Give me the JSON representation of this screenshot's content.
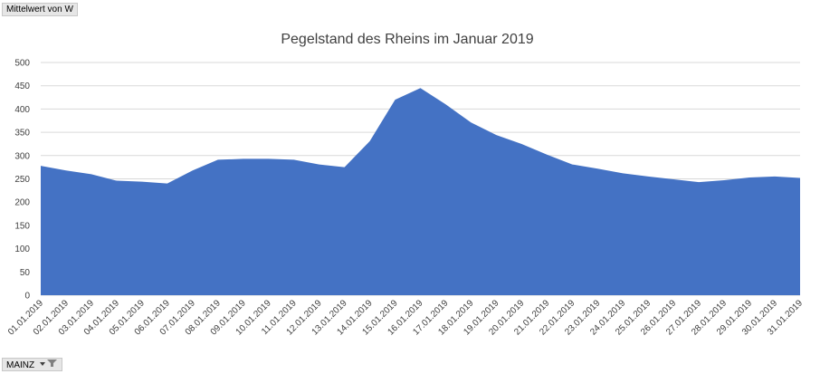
{
  "pivot": {
    "value_field": "Mittelwert von W",
    "filter_field": "MAINZ"
  },
  "colors": {
    "area": "#4472c4",
    "grid": "#d9d9d9",
    "text": "#404040",
    "button": "#e6e6e6"
  },
  "chart_data": {
    "type": "area",
    "title": "Pegelstand des Rheins im Januar 2019",
    "xlabel": "",
    "ylabel": "",
    "ylim": [
      0,
      500
    ],
    "yticks": [
      0,
      50,
      100,
      150,
      200,
      250,
      300,
      350,
      400,
      450,
      500
    ],
    "grid": true,
    "legend": "none",
    "categories": [
      "01.01.2019",
      "02.01.2019",
      "03.01.2019",
      "04.01.2019",
      "05.01.2019",
      "06.01.2019",
      "07.01.2019",
      "08.01.2019",
      "09.01.2019",
      "10.01.2019",
      "11.01.2019",
      "12.01.2019",
      "13.01.2019",
      "14.01.2019",
      "15.01.2019",
      "16.01.2019",
      "17.01.2019",
      "18.01.2019",
      "19.01.2019",
      "20.01.2019",
      "21.01.2019",
      "22.01.2019",
      "23.01.2019",
      "24.01.2019",
      "25.01.2019",
      "26.01.2019",
      "27.01.2019",
      "28.01.2019",
      "29.01.2019",
      "30.01.2019",
      "31.01.2019"
    ],
    "values": [
      278,
      268,
      260,
      246,
      244,
      240,
      268,
      291,
      293,
      293,
      291,
      281,
      275,
      331,
      420,
      445,
      410,
      371,
      344,
      325,
      302,
      281,
      272,
      262,
      255,
      249,
      243,
      247,
      253,
      255,
      252
    ]
  }
}
